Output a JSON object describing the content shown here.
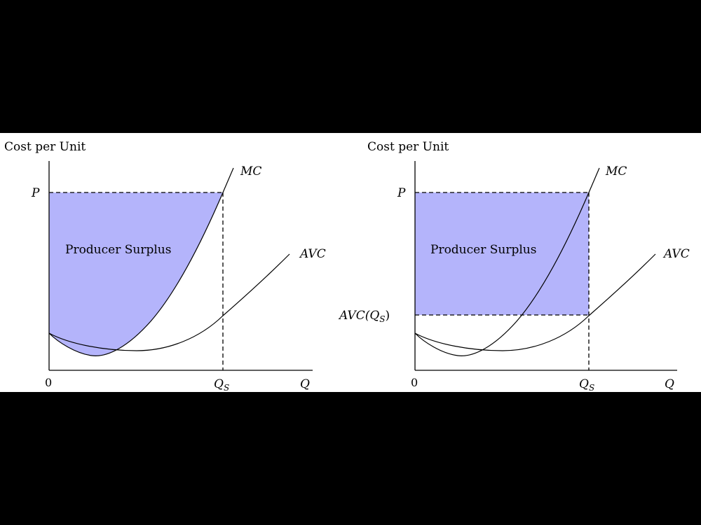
{
  "colors": {
    "background": "#000000",
    "panel": "#ffffff",
    "surplus_fill": "#b4b4fb",
    "line": "#000000"
  },
  "panels": [
    {
      "name": "left",
      "y_axis_label": "Cost per Unit",
      "price_label": "P",
      "origin_label": "0",
      "qs_label": "Q",
      "qs_subscript": "S",
      "x_axis_label": "Q",
      "mc_label": "MC",
      "avc_label": "AVC",
      "surplus_label": "Producer Surplus",
      "surplus_shape": "area above MC, below P"
    },
    {
      "name": "right",
      "y_axis_label": "Cost per Unit",
      "price_label": "P",
      "origin_label": "0",
      "qs_label": "Q",
      "qs_subscript": "S",
      "x_axis_label": "Q",
      "mc_label": "MC",
      "avc_label": "AVC",
      "avc_qs_label": "AVC(Q",
      "avc_qs_subscript": "S",
      "avc_qs_close": ")",
      "surplus_label": "Producer Surplus",
      "surplus_shape": "rectangle between P and AVC(QS)"
    }
  ]
}
